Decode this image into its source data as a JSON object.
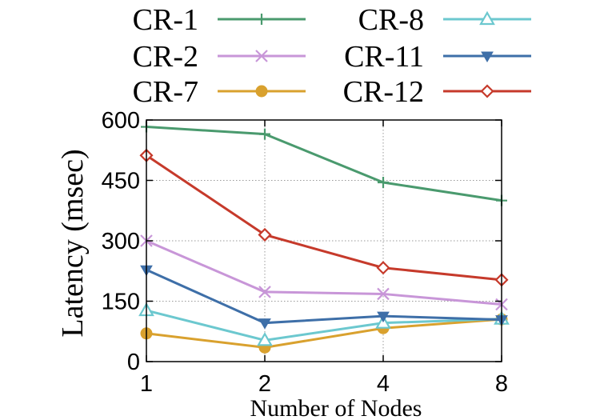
{
  "chart_data": {
    "type": "line",
    "x": [
      1,
      2,
      4,
      8
    ],
    "xscale": "log2",
    "xlabel": "Number of Nodes",
    "ylabel": "Latency (msec)",
    "ylim": [
      0,
      600
    ],
    "yticks": [
      0,
      150,
      300,
      450,
      600
    ],
    "grid": true,
    "legend_placement": "top, two columns, outside plot",
    "series": [
      {
        "name": "CR-1",
        "marker": "plus",
        "color": "#4a9a6e",
        "values": [
          583,
          565,
          445,
          400
        ]
      },
      {
        "name": "CR-2",
        "marker": "cross",
        "color": "#c896d8",
        "values": [
          300,
          173,
          168,
          142
        ]
      },
      {
        "name": "CR-7",
        "marker": "circle",
        "color": "#d9a12e",
        "values": [
          70,
          35,
          83,
          105
        ]
      },
      {
        "name": "CR-8",
        "marker": "triangle-open",
        "color": "#6cc8cf",
        "values": [
          127,
          53,
          96,
          106
        ]
      },
      {
        "name": "CR-11",
        "marker": "triangle-down",
        "color": "#3e6fa8",
        "values": [
          228,
          96,
          113,
          104
        ]
      },
      {
        "name": "CR-12",
        "marker": "diamond-open",
        "color": "#c63a2b",
        "values": [
          512,
          315,
          233,
          203
        ]
      }
    ]
  }
}
